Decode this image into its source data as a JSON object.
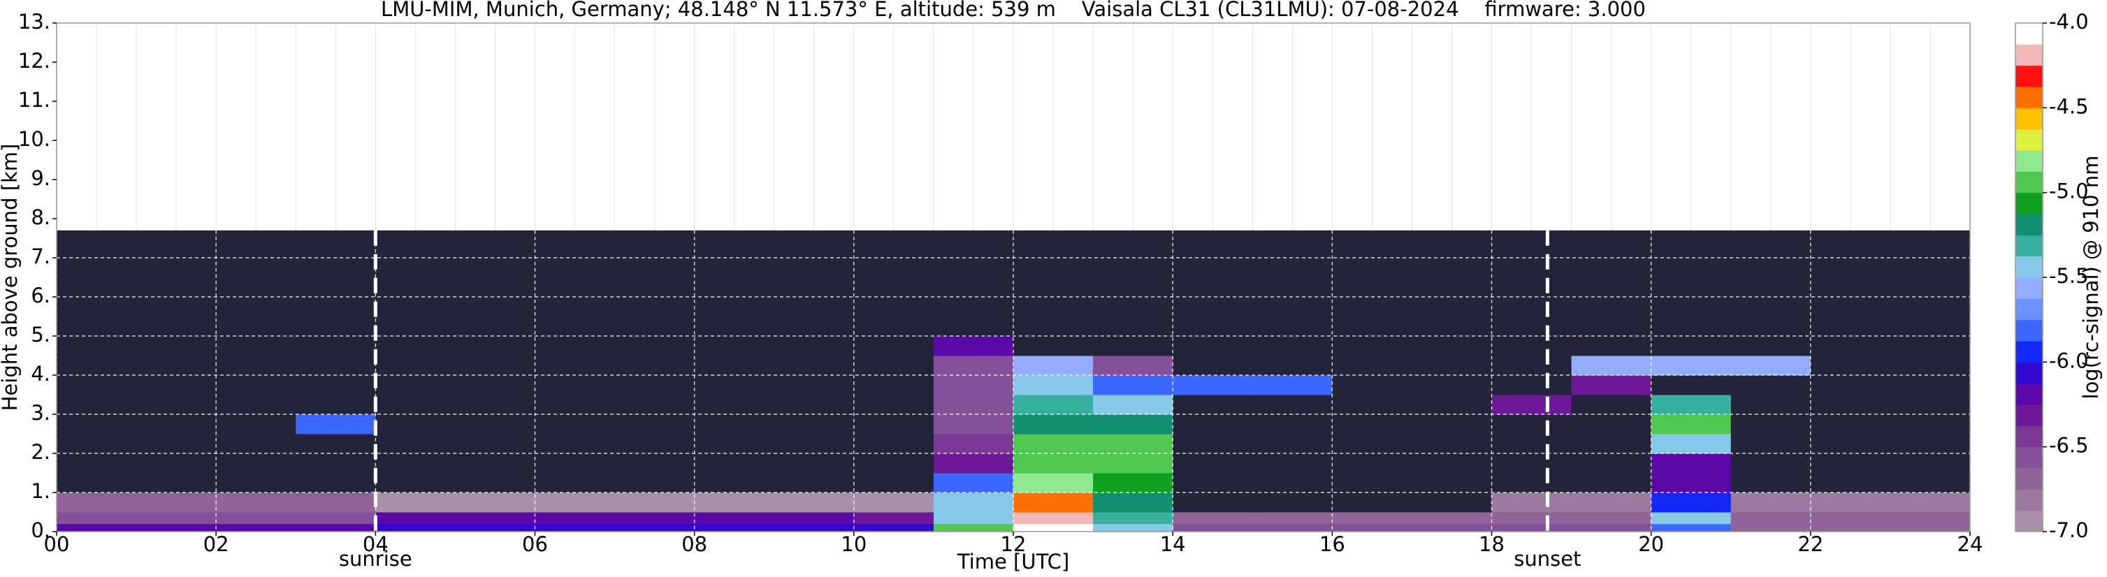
{
  "chart_data": {
    "type": "heatmap",
    "title": "LMU-MIM, Munich, Germany; 48.148° N 11.573° E, altitude: 539 m    Vaisala CL31 (CL31LMU): 07-08-2024    firmware: 3.000",
    "xlabel": "Time [UTC]",
    "ylabel": "Height above ground [km]",
    "colorbar_label": "log(rc-signal) @ 910 nm",
    "xlim": [
      0,
      24
    ],
    "ylim": [
      0,
      13
    ],
    "xticks": [
      {
        "value": 0,
        "label": "00"
      },
      {
        "value": 2,
        "label": "02"
      },
      {
        "value": 4,
        "label": "04"
      },
      {
        "value": 6,
        "label": "06"
      },
      {
        "value": 8,
        "label": "08"
      },
      {
        "value": 10,
        "label": "10"
      },
      {
        "value": 12,
        "label": "12"
      },
      {
        "value": 14,
        "label": "14"
      },
      {
        "value": 16,
        "label": "16"
      },
      {
        "value": 18,
        "label": "18"
      },
      {
        "value": 20,
        "label": "20"
      },
      {
        "value": 22,
        "label": "22"
      },
      {
        "value": 24,
        "label": "24"
      }
    ],
    "yticks": [
      {
        "value": 0,
        "label": "0."
      },
      {
        "value": 1,
        "label": "1."
      },
      {
        "value": 2,
        "label": "2."
      },
      {
        "value": 3,
        "label": "3."
      },
      {
        "value": 4,
        "label": "4."
      },
      {
        "value": 5,
        "label": "5."
      },
      {
        "value": 6,
        "label": "6."
      },
      {
        "value": 7,
        "label": "7."
      },
      {
        "value": 8,
        "label": "8."
      },
      {
        "value": 9,
        "label": "9."
      },
      {
        "value": 10,
        "label": "10."
      },
      {
        "value": 11,
        "label": "11."
      },
      {
        "value": 12,
        "label": "12."
      },
      {
        "value": 13,
        "label": "13."
      }
    ],
    "grid": true,
    "x": [
      0,
      1,
      2,
      3,
      4,
      5,
      6,
      7,
      8,
      9,
      10,
      11,
      12,
      13,
      14,
      15,
      16,
      17,
      18,
      19,
      20,
      21,
      22,
      23,
      24
    ],
    "y": [
      0,
      0.2,
      0.5,
      1,
      1.5,
      2,
      2.5,
      3,
      3.5,
      4,
      4.5,
      5,
      6,
      7.7
    ],
    "z": [
      [
        -6.2,
        -6.2,
        -6.2,
        -6.2,
        -6.1,
        -6.1,
        -6.1,
        -6.1,
        -6.1,
        -6.1,
        -6.1,
        -5.0,
        -4.0,
        -5.4,
        -6.6,
        -6.6,
        -6.6,
        -6.6,
        -6.6,
        -6.6,
        -5.8,
        -6.7,
        -6.7,
        -6.7
      ],
      [
        -6.6,
        -6.6,
        -6.6,
        -6.6,
        -6.2,
        -6.2,
        -6.2,
        -6.2,
        -6.2,
        -6.2,
        -6.3,
        -5.5,
        -4.2,
        -5.3,
        -6.7,
        -6.7,
        -6.7,
        -6.7,
        -6.7,
        -6.7,
        -5.5,
        -6.7,
        -6.7,
        -6.7
      ],
      [
        -6.7,
        -6.7,
        -6.7,
        -6.7,
        -6.9,
        -6.9,
        -6.9,
        -6.9,
        -6.9,
        -6.9,
        -6.9,
        -5.5,
        -4.5,
        -5.2,
        -7.1,
        -7.1,
        -7.1,
        -7.1,
        -6.8,
        -6.8,
        -6.0,
        -6.8,
        -6.8,
        -6.8
      ],
      [
        -7.1,
        -7.1,
        -7.1,
        -7.1,
        -7.1,
        -7.1,
        -7.1,
        -7.1,
        -7.1,
        -7.1,
        -7.1,
        -5.8,
        -4.8,
        -5.1,
        -7.1,
        -7.1,
        -7.1,
        -7.1,
        -7.1,
        -7.1,
        -6.2,
        -7.1,
        -7.1,
        -7.1
      ],
      [
        -7.1,
        -7.1,
        -7.1,
        -7.1,
        -7.1,
        -7.1,
        -7.1,
        -7.1,
        -7.1,
        -7.1,
        -7.1,
        -6.3,
        -5.0,
        -5.0,
        -7.1,
        -7.1,
        -7.1,
        -7.1,
        -7.1,
        -7.1,
        -6.2,
        -7.1,
        -7.1,
        -7.1
      ],
      [
        -7.1,
        -7.1,
        -7.1,
        -7.1,
        -7.1,
        -7.1,
        -7.1,
        -7.1,
        -7.1,
        -7.1,
        -7.1,
        -6.5,
        -5.0,
        -5.0,
        -7.1,
        -7.1,
        -7.1,
        -7.1,
        -7.1,
        -7.1,
        -5.5,
        -7.1,
        -7.1,
        -7.1
      ],
      [
        -7.1,
        -7.1,
        -7.1,
        -5.8,
        -7.1,
        -7.1,
        -7.1,
        -7.1,
        -7.1,
        -7.1,
        -7.1,
        -6.6,
        -5.2,
        -5.2,
        -7.1,
        -7.1,
        -7.1,
        -7.1,
        -7.1,
        -7.1,
        -5.0,
        -7.1,
        -7.1,
        -7.1
      ],
      [
        -7.1,
        -7.1,
        -7.1,
        -7.1,
        -7.1,
        -7.1,
        -7.1,
        -7.1,
        -7.1,
        -7.1,
        -7.1,
        -6.6,
        -5.3,
        -5.5,
        -7.1,
        -7.1,
        -7.1,
        -7.1,
        -6.3,
        -7.1,
        -5.3,
        -7.1,
        -7.1,
        -7.1
      ],
      [
        -7.1,
        -7.1,
        -7.1,
        -7.1,
        -7.1,
        -7.1,
        -7.1,
        -7.1,
        -7.1,
        -7.1,
        -7.1,
        -6.6,
        -5.5,
        -5.8,
        -5.8,
        -5.8,
        -7.1,
        -7.1,
        -7.1,
        -6.3,
        -7.1,
        -7.1,
        -7.1,
        -7.1
      ],
      [
        -7.1,
        -7.1,
        -7.1,
        -7.1,
        -7.1,
        -7.1,
        -7.1,
        -7.1,
        -7.1,
        -7.1,
        -7.1,
        -6.6,
        -5.6,
        -6.6,
        -7.1,
        -7.1,
        -7.1,
        -7.1,
        -7.1,
        -5.6,
        -5.6,
        -5.6,
        -7.1,
        -7.1
      ],
      [
        -7.1,
        -7.1,
        -7.1,
        -7.1,
        -7.1,
        -7.1,
        -7.1,
        -7.1,
        -7.1,
        -7.1,
        -7.1,
        -6.2,
        -7.1,
        -7.1,
        -7.1,
        -7.1,
        -7.1,
        -7.1,
        -7.1,
        -7.1,
        -7.1,
        -7.1,
        -7.1,
        -7.1
      ],
      [
        -7.1,
        -7.1,
        -7.1,
        -7.1,
        -7.1,
        -7.1,
        -7.1,
        -7.1,
        -7.1,
        -7.1,
        -7.1,
        -7.1,
        -7.1,
        -7.1,
        -7.1,
        -7.1,
        -7.1,
        -7.1,
        -7.1,
        -7.1,
        -7.1,
        -7.1,
        -7.1,
        -7.1
      ],
      [
        -7.1,
        -7.1,
        -7.1,
        -7.1,
        -7.1,
        -7.1,
        -7.1,
        -7.1,
        -7.1,
        -7.1,
        -7.1,
        -7.1,
        -7.1,
        -7.1,
        -7.1,
        -7.1,
        -7.1,
        -7.1,
        -7.1,
        -7.1,
        -7.1,
        -7.1,
        -7.1,
        -7.1
      ]
    ],
    "zlim": [
      -7,
      -4
    ],
    "zticks": [
      {
        "value": -7,
        "label": "-7.0"
      },
      {
        "value": -6.5,
        "label": "-6.5"
      },
      {
        "value": -6,
        "label": "-6.0"
      },
      {
        "value": -5.5,
        "label": "-5.5"
      },
      {
        "value": -5,
        "label": "-5.0"
      },
      {
        "value": -4.5,
        "label": "-4.5"
      },
      {
        "value": -4,
        "label": "-4.0"
      }
    ],
    "colors": [
      "#a890a8",
      "#9c7aa0",
      "#906498",
      "#84509a",
      "#783894",
      "#6c1898",
      "#5a08a8",
      "#3008d0",
      "#1428f8",
      "#3c68ff",
      "#6c90ff",
      "#94acff",
      "#88c8e8",
      "#38b0a0",
      "#109070",
      "#10a020",
      "#50c850",
      "#90e890",
      "#e0f040",
      "#ffc000",
      "#ff7000",
      "#ff1010",
      "#f0b8b8",
      "#ffffff"
    ],
    "under_color": "#23233a",
    "annotations": [
      {
        "text": "sunrise",
        "x": 4
      },
      {
        "text": "sunset",
        "x": 18.7
      }
    ]
  }
}
